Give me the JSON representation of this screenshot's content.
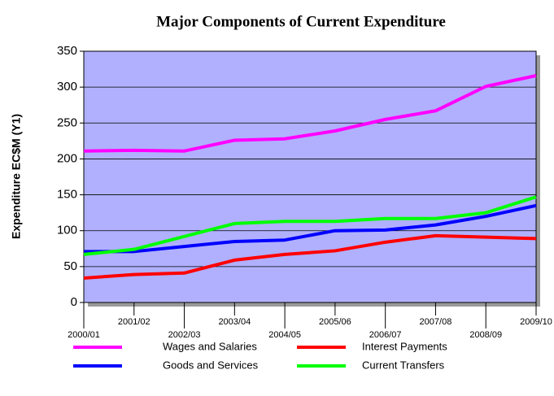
{
  "chart_data": {
    "type": "line",
    "title": "Major Components of Current Expenditure",
    "y_label": "Expenditure EC$M (Y1)",
    "categories": [
      "2000/01",
      "2001/02",
      "2002/03",
      "2003/04",
      "2004/05",
      "2005/06",
      "2006/07",
      "2007/08",
      "2008/09",
      "2009/10"
    ],
    "series": [
      {
        "name": "Wages and Salaries",
        "color": "#ff00ff",
        "values": [
          211,
          212,
          211,
          226,
          228,
          239,
          255,
          267,
          301,
          316
        ]
      },
      {
        "name": "Interest Payments",
        "color": "#ff0000",
        "values": [
          34,
          39,
          41,
          59,
          67,
          72,
          84,
          93,
          91,
          89
        ]
      },
      {
        "name": "Goods and Services",
        "color": "#0000ff",
        "values": [
          71,
          71,
          78,
          85,
          87,
          100,
          101,
          108,
          120,
          135
        ]
      },
      {
        "name": "Current Transfers",
        "color": "#00ff00",
        "values": [
          67,
          74,
          92,
          110,
          113,
          113,
          117,
          117,
          125,
          147
        ]
      }
    ],
    "ylim": [
      0,
      350
    ],
    "yticks": [
      0,
      50,
      100,
      150,
      200,
      250,
      300,
      350
    ],
    "grid": true,
    "plot_background": "#b0b0ff",
    "legend": "bottom"
  }
}
